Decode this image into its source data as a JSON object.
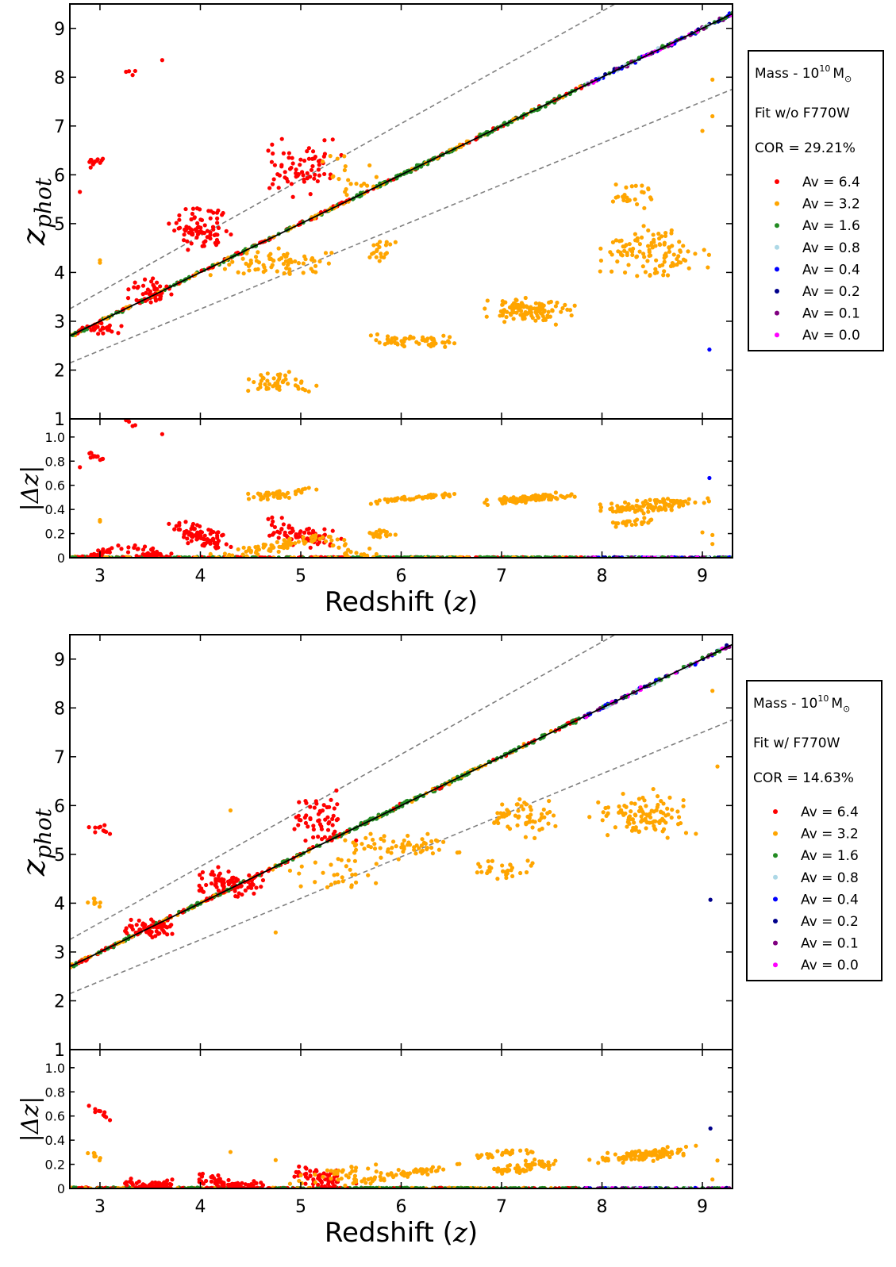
{
  "chart_data": [
    {
      "type": "scatter",
      "panel": "top",
      "legend": {
        "line1": "Mass - 10",
        "line1_sup": "10",
        "line1_unit": "M",
        "line1_sub": "⊙",
        "line2": "Fit w/o F770W",
        "line3": "COR = 29.21%",
        "placement": "right"
      },
      "xlabel": "Redshift (",
      "xlabel_var": "z",
      "xlabel_end": ")",
      "ylabel": "z",
      "ylabel_sub": "phot",
      "dlabel": "|Δz|",
      "xlim": [
        2.7,
        9.3
      ],
      "ylim": [
        1,
        9.5
      ],
      "dlim": [
        0,
        1.15
      ],
      "x_ticks": [
        "3",
        "4",
        "5",
        "6",
        "7",
        "8",
        "9"
      ],
      "y_ticks": [
        "1",
        "2",
        "3",
        "4",
        "5",
        "6",
        "7",
        "8",
        "9"
      ],
      "d_ticks": [
        "0",
        "0.2",
        "0.4",
        "0.6",
        "0.8",
        "1.0"
      ],
      "series": [
        {
          "name": "Av = 6.4",
          "color": "#ff0000",
          "clusters": [
            [
              2.95,
              6.3,
              0.15,
              0.2,
              14
            ],
            [
              3.3,
              8.1,
              0.1,
              0.15,
              4
            ],
            [
              3.5,
              3.6,
              0.3,
              0.4,
              40
            ],
            [
              4.0,
              4.9,
              0.35,
              0.6,
              80
            ],
            [
              5.0,
              6.2,
              0.5,
              0.8,
              70
            ],
            [
              3.0,
              2.85,
              0.3,
              0.15,
              25
            ]
          ],
          "points": [
            [
              3.62,
              8.35
            ],
            [
              2.8,
              5.65
            ]
          ]
        },
        {
          "name": "Av = 3.2",
          "color": "#ffa500",
          "clusters": [
            [
              4.8,
              1.75,
              0.5,
              0.3,
              50
            ],
            [
              6.1,
              2.6,
              0.6,
              0.2,
              60
            ],
            [
              7.3,
              3.2,
              0.6,
              0.35,
              110
            ],
            [
              8.5,
              4.4,
              0.7,
              0.6,
              110
            ],
            [
              4.8,
              4.2,
              0.8,
              0.4,
              70
            ],
            [
              5.5,
              6.0,
              0.4,
              0.6,
              20
            ],
            [
              5.8,
              4.5,
              0.2,
              0.4,
              20
            ],
            [
              8.3,
              5.6,
              0.4,
              0.4,
              25
            ]
          ],
          "points": [
            [
              9.1,
              7.95
            ],
            [
              9.1,
              7.2
            ],
            [
              9.0,
              6.9
            ],
            [
              3.0,
              4.2
            ],
            [
              3.0,
              4.25
            ]
          ]
        },
        {
          "name": "Av = 1.6",
          "color": "#228b22",
          "clusters": [],
          "points": []
        },
        {
          "name": "Av = 0.8",
          "color": "#add8e6",
          "clusters": [],
          "points": []
        },
        {
          "name": "Av = 0.4",
          "color": "#0000ff",
          "clusters": [],
          "points": [
            [
              9.07,
              2.42
            ]
          ]
        },
        {
          "name": "Av = 0.2",
          "color": "#00008b",
          "clusters": [],
          "points": []
        },
        {
          "name": "Av = 0.1",
          "color": "#800080",
          "clusters": [],
          "points": []
        },
        {
          "name": "Av = 0.0",
          "color": "#ff00ff",
          "clusters": [],
          "points": []
        }
      ]
    },
    {
      "type": "scatter",
      "panel": "bottom",
      "legend": {
        "line1": "Mass - 10",
        "line1_sup": "10",
        "line1_unit": "M",
        "line1_sub": "⊙",
        "line2": "Fit w/ F770W",
        "line3": "COR = 14.63%",
        "placement": "right"
      },
      "xlabel": "Redshift (",
      "xlabel_var": "z",
      "xlabel_end": ")",
      "ylabel": "z",
      "ylabel_sub": "phot",
      "dlabel": "|Δz|",
      "xlim": [
        2.7,
        9.3
      ],
      "ylim": [
        1,
        9.5
      ],
      "dlim": [
        0,
        1.15
      ],
      "x_ticks": [
        "3",
        "4",
        "5",
        "6",
        "7",
        "8",
        "9"
      ],
      "y_ticks": [
        "1",
        "2",
        "3",
        "4",
        "5",
        "6",
        "7",
        "8",
        "9"
      ],
      "d_ticks": [
        "0",
        "0.2",
        "0.4",
        "0.6",
        "0.8",
        "1.0"
      ],
      "series": [
        {
          "name": "Av = 6.4",
          "color": "#ff0000",
          "clusters": [
            [
              3.0,
              5.5,
              0.2,
              0.2,
              10
            ],
            [
              3.5,
              3.5,
              0.4,
              0.3,
              60
            ],
            [
              4.3,
              4.4,
              0.5,
              0.4,
              80
            ],
            [
              5.2,
              5.7,
              0.4,
              0.7,
              60
            ]
          ],
          "points": []
        },
        {
          "name": "Av = 3.2",
          "color": "#ffa500",
          "clusters": [
            [
              6.0,
              5.2,
              0.8,
              0.4,
              60
            ],
            [
              7.2,
              5.8,
              0.5,
              0.6,
              60
            ],
            [
              8.4,
              5.8,
              0.6,
              0.6,
              110
            ],
            [
              7.0,
              4.7,
              0.5,
              0.3,
              30
            ],
            [
              5.3,
              4.6,
              0.6,
              0.5,
              30
            ],
            [
              2.95,
              4.0,
              0.15,
              0.2,
              8
            ]
          ],
          "points": [
            [
              9.1,
              8.35
            ],
            [
              9.15,
              6.8
            ],
            [
              4.3,
              5.9
            ],
            [
              4.75,
              3.4
            ]
          ]
        },
        {
          "name": "Av = 1.6",
          "color": "#228b22",
          "clusters": [],
          "points": []
        },
        {
          "name": "Av = 0.8",
          "color": "#add8e6",
          "clusters": [],
          "points": []
        },
        {
          "name": "Av = 0.4",
          "color": "#0000ff",
          "clusters": [],
          "points": []
        },
        {
          "name": "Av = 0.2",
          "color": "#00008b",
          "clusters": [],
          "points": [
            [
              9.08,
              4.07
            ]
          ]
        },
        {
          "name": "Av = 0.1",
          "color": "#800080",
          "clusters": [],
          "points": []
        },
        {
          "name": "Av = 0.0",
          "color": "#ff00ff",
          "clusters": [],
          "points": []
        }
      ]
    }
  ]
}
